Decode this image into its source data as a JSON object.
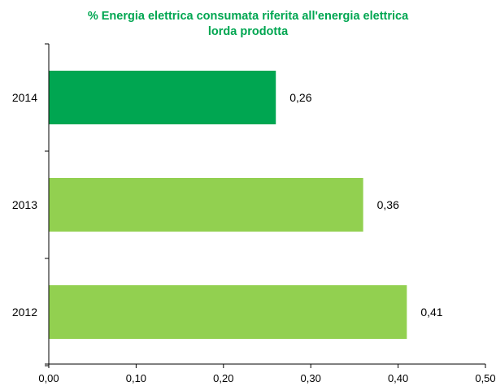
{
  "chart_data": {
    "type": "bar",
    "orientation": "horizontal",
    "title_lines": [
      "% Energia elettrica consumata riferita all'energia elettrica",
      "lorda prodotta"
    ],
    "categories": [
      "2014",
      "2013",
      "2012"
    ],
    "values": [
      0.26,
      0.36,
      0.41
    ],
    "value_labels": [
      "0,26",
      "0,36",
      "0,41"
    ],
    "bar_colors": [
      "#00a651",
      "#92d050",
      "#92d050"
    ],
    "xlim": [
      0,
      0.5
    ],
    "x_ticks": [
      0,
      0.1,
      0.2,
      0.3,
      0.4,
      0.5
    ],
    "x_tick_labels": [
      "0,00",
      "0,10",
      "0,20",
      "0,30",
      "0,40",
      "0,50"
    ],
    "grid": false,
    "legend": "none",
    "title_color": "#00a651"
  }
}
